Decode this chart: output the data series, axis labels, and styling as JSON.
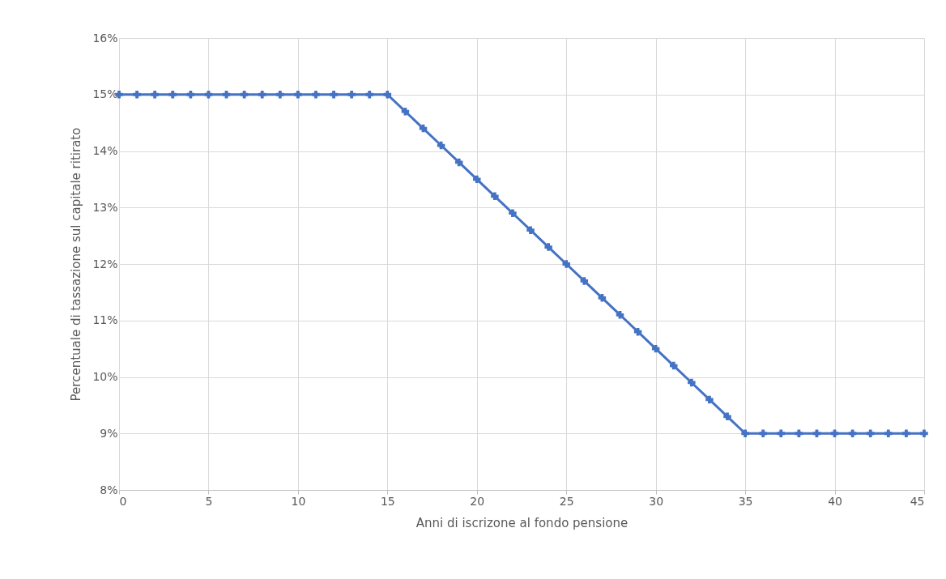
{
  "chart_data": {
    "type": "line",
    "xlabel": "Anni di iscrizone al fondo pensione",
    "ylabel": "Percentuale di tassazione sul capitale ritirato",
    "x": [
      0,
      1,
      2,
      3,
      4,
      5,
      6,
      7,
      8,
      9,
      10,
      11,
      12,
      13,
      14,
      15,
      16,
      17,
      18,
      19,
      20,
      21,
      22,
      23,
      24,
      25,
      26,
      27,
      28,
      29,
      30,
      31,
      32,
      33,
      34,
      35,
      36,
      37,
      38,
      39,
      40,
      41,
      42,
      43,
      44,
      45
    ],
    "series": [
      {
        "color": "#4472c4",
        "values": [
          15,
          15,
          15,
          15,
          15,
          15,
          15,
          15,
          15,
          15,
          15,
          15,
          15,
          15,
          15,
          15,
          14.7,
          14.4,
          14.1,
          13.8,
          13.5,
          13.2,
          12.9,
          12.6,
          12.3,
          12,
          11.7,
          11.4,
          11.1,
          10.8,
          10.5,
          10.2,
          9.9,
          9.6,
          9.3,
          9,
          9,
          9,
          9,
          9,
          9,
          9,
          9,
          9,
          9,
          9
        ]
      }
    ],
    "xlim": [
      0,
      45
    ],
    "xticks": [
      0,
      5,
      10,
      15,
      20,
      25,
      30,
      35,
      40,
      45
    ],
    "ylim": [
      8,
      16
    ],
    "yticks": [
      {
        "value": 8,
        "label": "8%"
      },
      {
        "value": 9,
        "label": "9%"
      },
      {
        "value": 10,
        "label": "10%"
      },
      {
        "value": 11,
        "label": "11%"
      },
      {
        "value": 12,
        "label": "12%"
      },
      {
        "value": 13,
        "label": "13%"
      },
      {
        "value": 14,
        "label": "14%"
      },
      {
        "value": 15,
        "label": "15%"
      },
      {
        "value": 16,
        "label": "16%"
      }
    ],
    "grid": true,
    "marker": "cross",
    "line_style": "solid"
  }
}
